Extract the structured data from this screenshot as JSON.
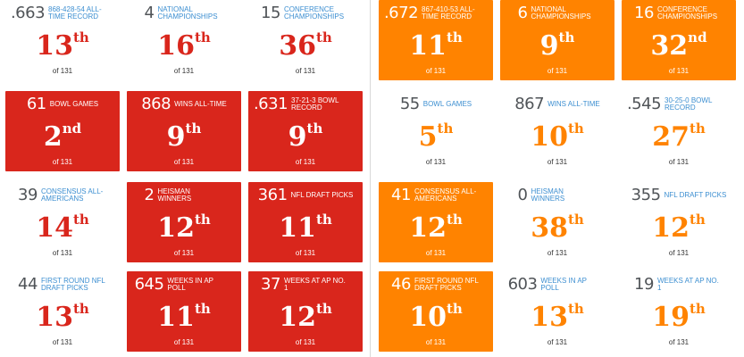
{
  "of_text": "of 131",
  "colors": {
    "red": "#d9261c",
    "orange": "#ff8300",
    "label_blue": "#3d8fd1",
    "number_gray": "#505458"
  },
  "left": [
    {
      "value": ".663",
      "label": "868-428-54 ALL-TIME RECORD",
      "rank": "13",
      "suffix": "th"
    },
    {
      "value": "4",
      "label": "NATIONAL CHAMPIONSHIPS",
      "rank": "16",
      "suffix": "th"
    },
    {
      "value": "15",
      "label": "CONFERENCE CHAMPIONSHIPS",
      "rank": "36",
      "suffix": "th"
    },
    {
      "value": "61",
      "label": "BOWL GAMES",
      "rank": "2",
      "suffix": "nd"
    },
    {
      "value": "868",
      "label": "WINS ALL-TIME",
      "rank": "9",
      "suffix": "th"
    },
    {
      "value": ".631",
      "label": "37-21-3 BOWL RECORD",
      "rank": "9",
      "suffix": "th"
    },
    {
      "value": "39",
      "label": "CONSENSUS ALL-AMERICANS",
      "rank": "14",
      "suffix": "th"
    },
    {
      "value": "2",
      "label": "HEISMAN WINNERS",
      "rank": "12",
      "suffix": "th"
    },
    {
      "value": "361",
      "label": "NFL DRAFT PICKS",
      "rank": "11",
      "suffix": "th"
    },
    {
      "value": "44",
      "label": "FIRST ROUND NFL DRAFT PICKS",
      "rank": "13",
      "suffix": "th"
    },
    {
      "value": "645",
      "label": "WEEKS IN AP POLL",
      "rank": "11",
      "suffix": "th"
    },
    {
      "value": "37",
      "label": "WEEKS AT AP NO. 1",
      "rank": "12",
      "suffix": "th"
    }
  ],
  "right": [
    {
      "value": ".672",
      "label": "867-410-53 ALL-TIME RECORD",
      "rank": "11",
      "suffix": "th"
    },
    {
      "value": "6",
      "label": "NATIONAL CHAMPIONSHIPS",
      "rank": "9",
      "suffix": "th"
    },
    {
      "value": "16",
      "label": "CONFERENCE CHAMPIONSHIPS",
      "rank": "32",
      "suffix": "nd"
    },
    {
      "value": "55",
      "label": "BOWL GAMES",
      "rank": "5",
      "suffix": "th"
    },
    {
      "value": "867",
      "label": "WINS ALL-TIME",
      "rank": "10",
      "suffix": "th"
    },
    {
      "value": ".545",
      "label": "30-25-0 BOWL RECORD",
      "rank": "27",
      "suffix": "th"
    },
    {
      "value": "41",
      "label": "CONSENSUS ALL-AMERICANS",
      "rank": "12",
      "suffix": "th"
    },
    {
      "value": "0",
      "label": "HEISMAN WINNERS",
      "rank": "38",
      "suffix": "th"
    },
    {
      "value": "355",
      "label": "NFL DRAFT PICKS",
      "rank": "12",
      "suffix": "th"
    },
    {
      "value": "46",
      "label": "FIRST ROUND NFL DRAFT PICKS",
      "rank": "10",
      "suffix": "th"
    },
    {
      "value": "603",
      "label": "WEEKS IN AP POLL",
      "rank": "13",
      "suffix": "th"
    },
    {
      "value": "19",
      "label": "WEEKS AT AP NO. 1",
      "rank": "19",
      "suffix": "th"
    }
  ]
}
